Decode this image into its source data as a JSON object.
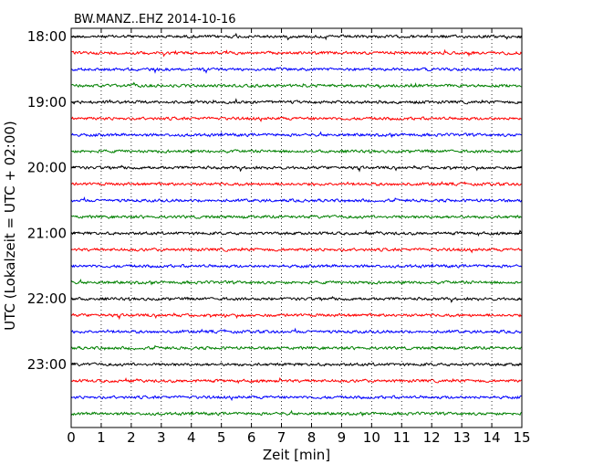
{
  "chart_data": {
    "type": "line",
    "title": "BW.MANZ..EHZ 2014-10-16",
    "xlabel": "Zeit  [min]",
    "ylabel": "UTC (Lokalzeit = UTC + 02:00)",
    "xlim": [
      0,
      15
    ],
    "x_ticks": [
      "0",
      "1",
      "2",
      "3",
      "4",
      "5",
      "6",
      "7",
      "8",
      "9",
      "10",
      "11",
      "12",
      "13",
      "14",
      "15"
    ],
    "y_ticks": [
      "18:00",
      "19:00",
      "20:00",
      "21:00",
      "22:00",
      "23:00"
    ],
    "grid": "vertical dotted",
    "trace_colors": [
      "#000000",
      "#ff0000",
      "#0000ff",
      "#008000"
    ],
    "trace_count": 24,
    "trace_interval_min": 15,
    "start_time": "18:00",
    "noise_amplitude": "low, uniform"
  }
}
